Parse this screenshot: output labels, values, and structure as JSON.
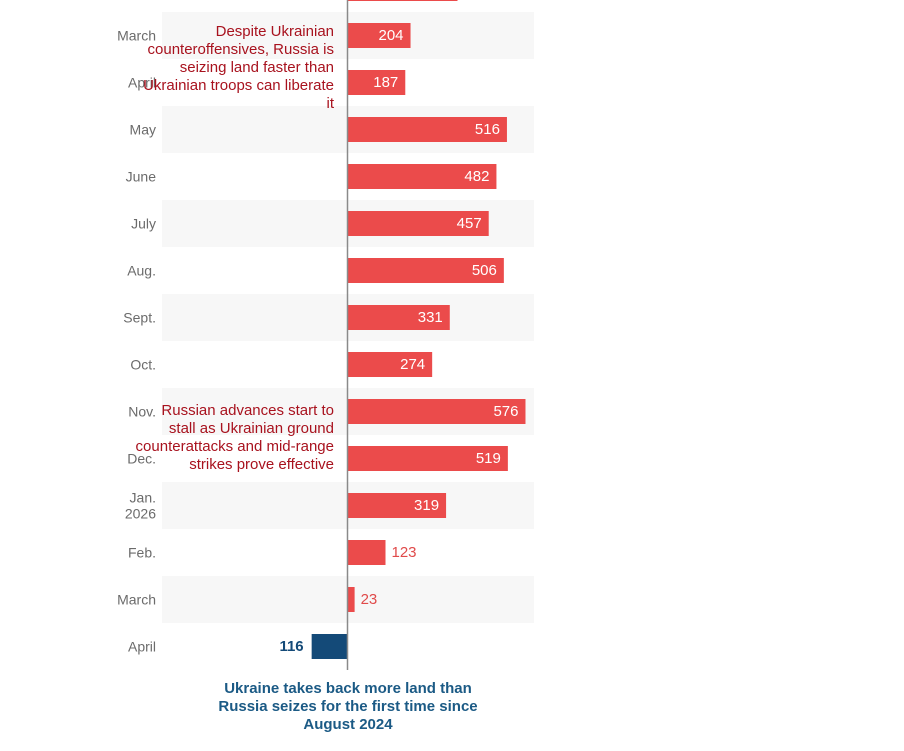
{
  "chart_data": {
    "type": "bar",
    "orientation": "horizontal",
    "categories": [
      "March",
      "April",
      "May",
      "June",
      "July",
      "Aug.",
      "Sept.",
      "Oct.",
      "Nov.",
      "Dec.",
      "Jan.\n2026",
      "Feb.",
      "March",
      "April"
    ],
    "values": [
      204,
      187,
      516,
      482,
      457,
      506,
      331,
      274,
      576,
      519,
      319,
      123,
      23,
      -116
    ],
    "value_labels": [
      "204",
      "187",
      "516",
      "482",
      "457",
      "506",
      "331",
      "274",
      "576",
      "519",
      "319",
      "123",
      "23",
      "116"
    ],
    "annotations": [
      {
        "text": "Despite Ukrainian counteroffensives, Russia is seizing land faster than Ukrainian troops can liberate it"
      },
      {
        "text": "Russian advances start to stall as Ukrainian ground counterattacks and mid-range strikes prove effective"
      }
    ],
    "footnote": "Ukraine takes back more land than Russia seizes for the first time since August 2024",
    "colors": {
      "positive": "#eb4b4b",
      "negative": "#144a78",
      "row_stripe": "#f7f7f7",
      "axis": "#8a8a8a",
      "annotation": "#a8121e",
      "footnote": "#1b5a85"
    }
  }
}
